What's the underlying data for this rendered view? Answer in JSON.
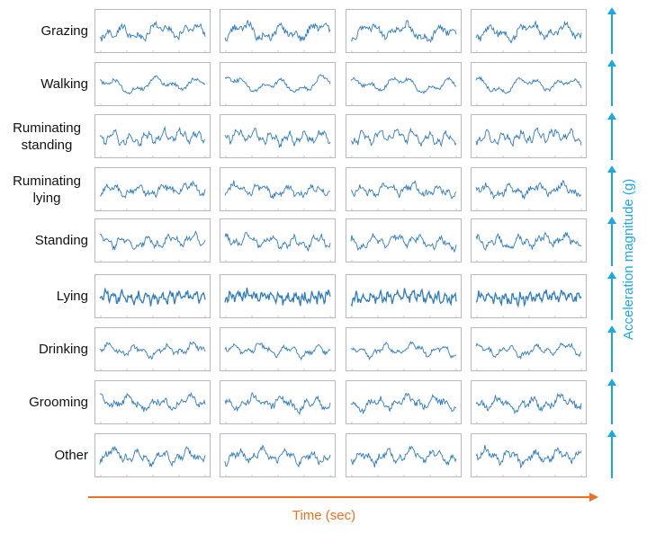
{
  "rows": [
    {
      "label": "Grazing"
    },
    {
      "label": "Walking"
    },
    {
      "label": "Ruminating standing"
    },
    {
      "label": "Ruminating lying"
    },
    {
      "label": "Standing"
    },
    {
      "label": "Lying"
    },
    {
      "label": "Drinking"
    },
    {
      "label": "Grooming"
    },
    {
      "label": "Other"
    }
  ],
  "x_axis": {
    "label": "Time (sec)",
    "color": "#f07020"
  },
  "y_axis": {
    "label": "Acceleration magnitude (g)",
    "color": "#19a8e6"
  },
  "signal_color": "#2f7bbd",
  "panel_border_color": "#b9b9b9"
}
